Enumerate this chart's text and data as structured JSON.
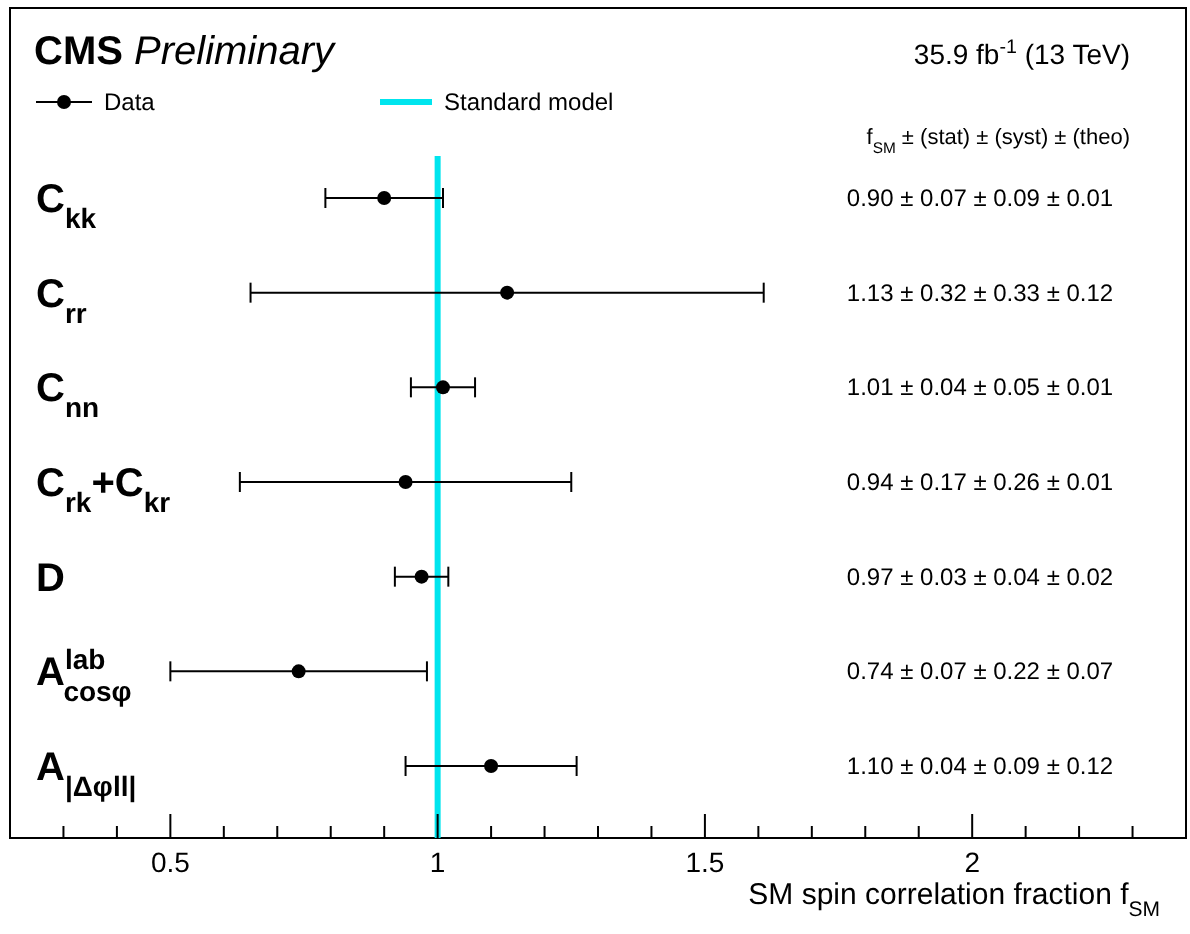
{
  "chart_data": {
    "type": "scatter",
    "orientation": "horizontal",
    "title": "CMS Preliminary",
    "subtitle": "35.9 fb$^{-1}$ (13 TeV)",
    "xlabel": "SM spin correlation fraction f$_{SM}$",
    "categories": [
      "C$_{kk}$",
      "C$_{rr}$",
      "C$_{nn}$",
      "C$_{rk}$+C$_{kr}$",
      "D",
      "A$^{lab}$$_{cosφ}$",
      "A$_{|Δφ}$$_{ll}$$_{|}$"
    ],
    "series": [
      {
        "name": "Data",
        "color": "#000000",
        "values": [
          0.9,
          1.13,
          1.01,
          0.94,
          0.97,
          0.74,
          1.1
        ],
        "errors": [
          0.11,
          0.48,
          0.06,
          0.31,
          0.05,
          0.24,
          0.16
        ]
      }
    ],
    "ref_lines": [
      {
        "axis": "x",
        "value": 1,
        "label": "Standard model",
        "color": "#00e5ee"
      }
    ],
    "annotations": [
      "f$_{SM}$ ± (stat) ± (syst) ± (theo)",
      "0.90 ± 0.07 ± 0.09 ± 0.01",
      "1.13 ± 0.32 ± 0.33 ± 0.12",
      "1.01 ± 0.04 ± 0.05 ± 0.01",
      "0.94 ± 0.17 ± 0.26 ± 0.01",
      "0.97 ± 0.03 ± 0.04 ± 0.02",
      "0.74 ± 0.07 ± 0.22 ± 0.07",
      "1.10 ± 0.04 ± 0.09 ± 0.12"
    ],
    "xlim": [
      0.2,
      2.4
    ],
    "xticks": [
      {
        "value": 0.3,
        "label": null
      },
      {
        "value": 0.4,
        "label": null
      },
      0.5,
      {
        "value": 0.6,
        "label": null
      },
      {
        "value": 0.7,
        "label": null
      },
      {
        "value": 0.8,
        "label": null
      },
      {
        "value": 0.9,
        "label": null
      },
      1,
      {
        "value": 1.1,
        "label": null
      },
      {
        "value": 1.2,
        "label": null
      },
      {
        "value": 1.3,
        "label": null
      },
      {
        "value": 1.4,
        "label": null
      },
      1.5,
      {
        "value": 1.6,
        "label": null
      },
      {
        "value": 1.7,
        "label": null
      },
      {
        "value": 1.8,
        "label": null
      },
      {
        "value": 1.9,
        "label": null
      },
      2,
      {
        "value": 2.1,
        "label": null
      },
      {
        "value": 2.2,
        "label": null
      },
      {
        "value": 2.3,
        "label": null
      }
    ],
    "legend": "top left",
    "marker": "circle"
  }
}
